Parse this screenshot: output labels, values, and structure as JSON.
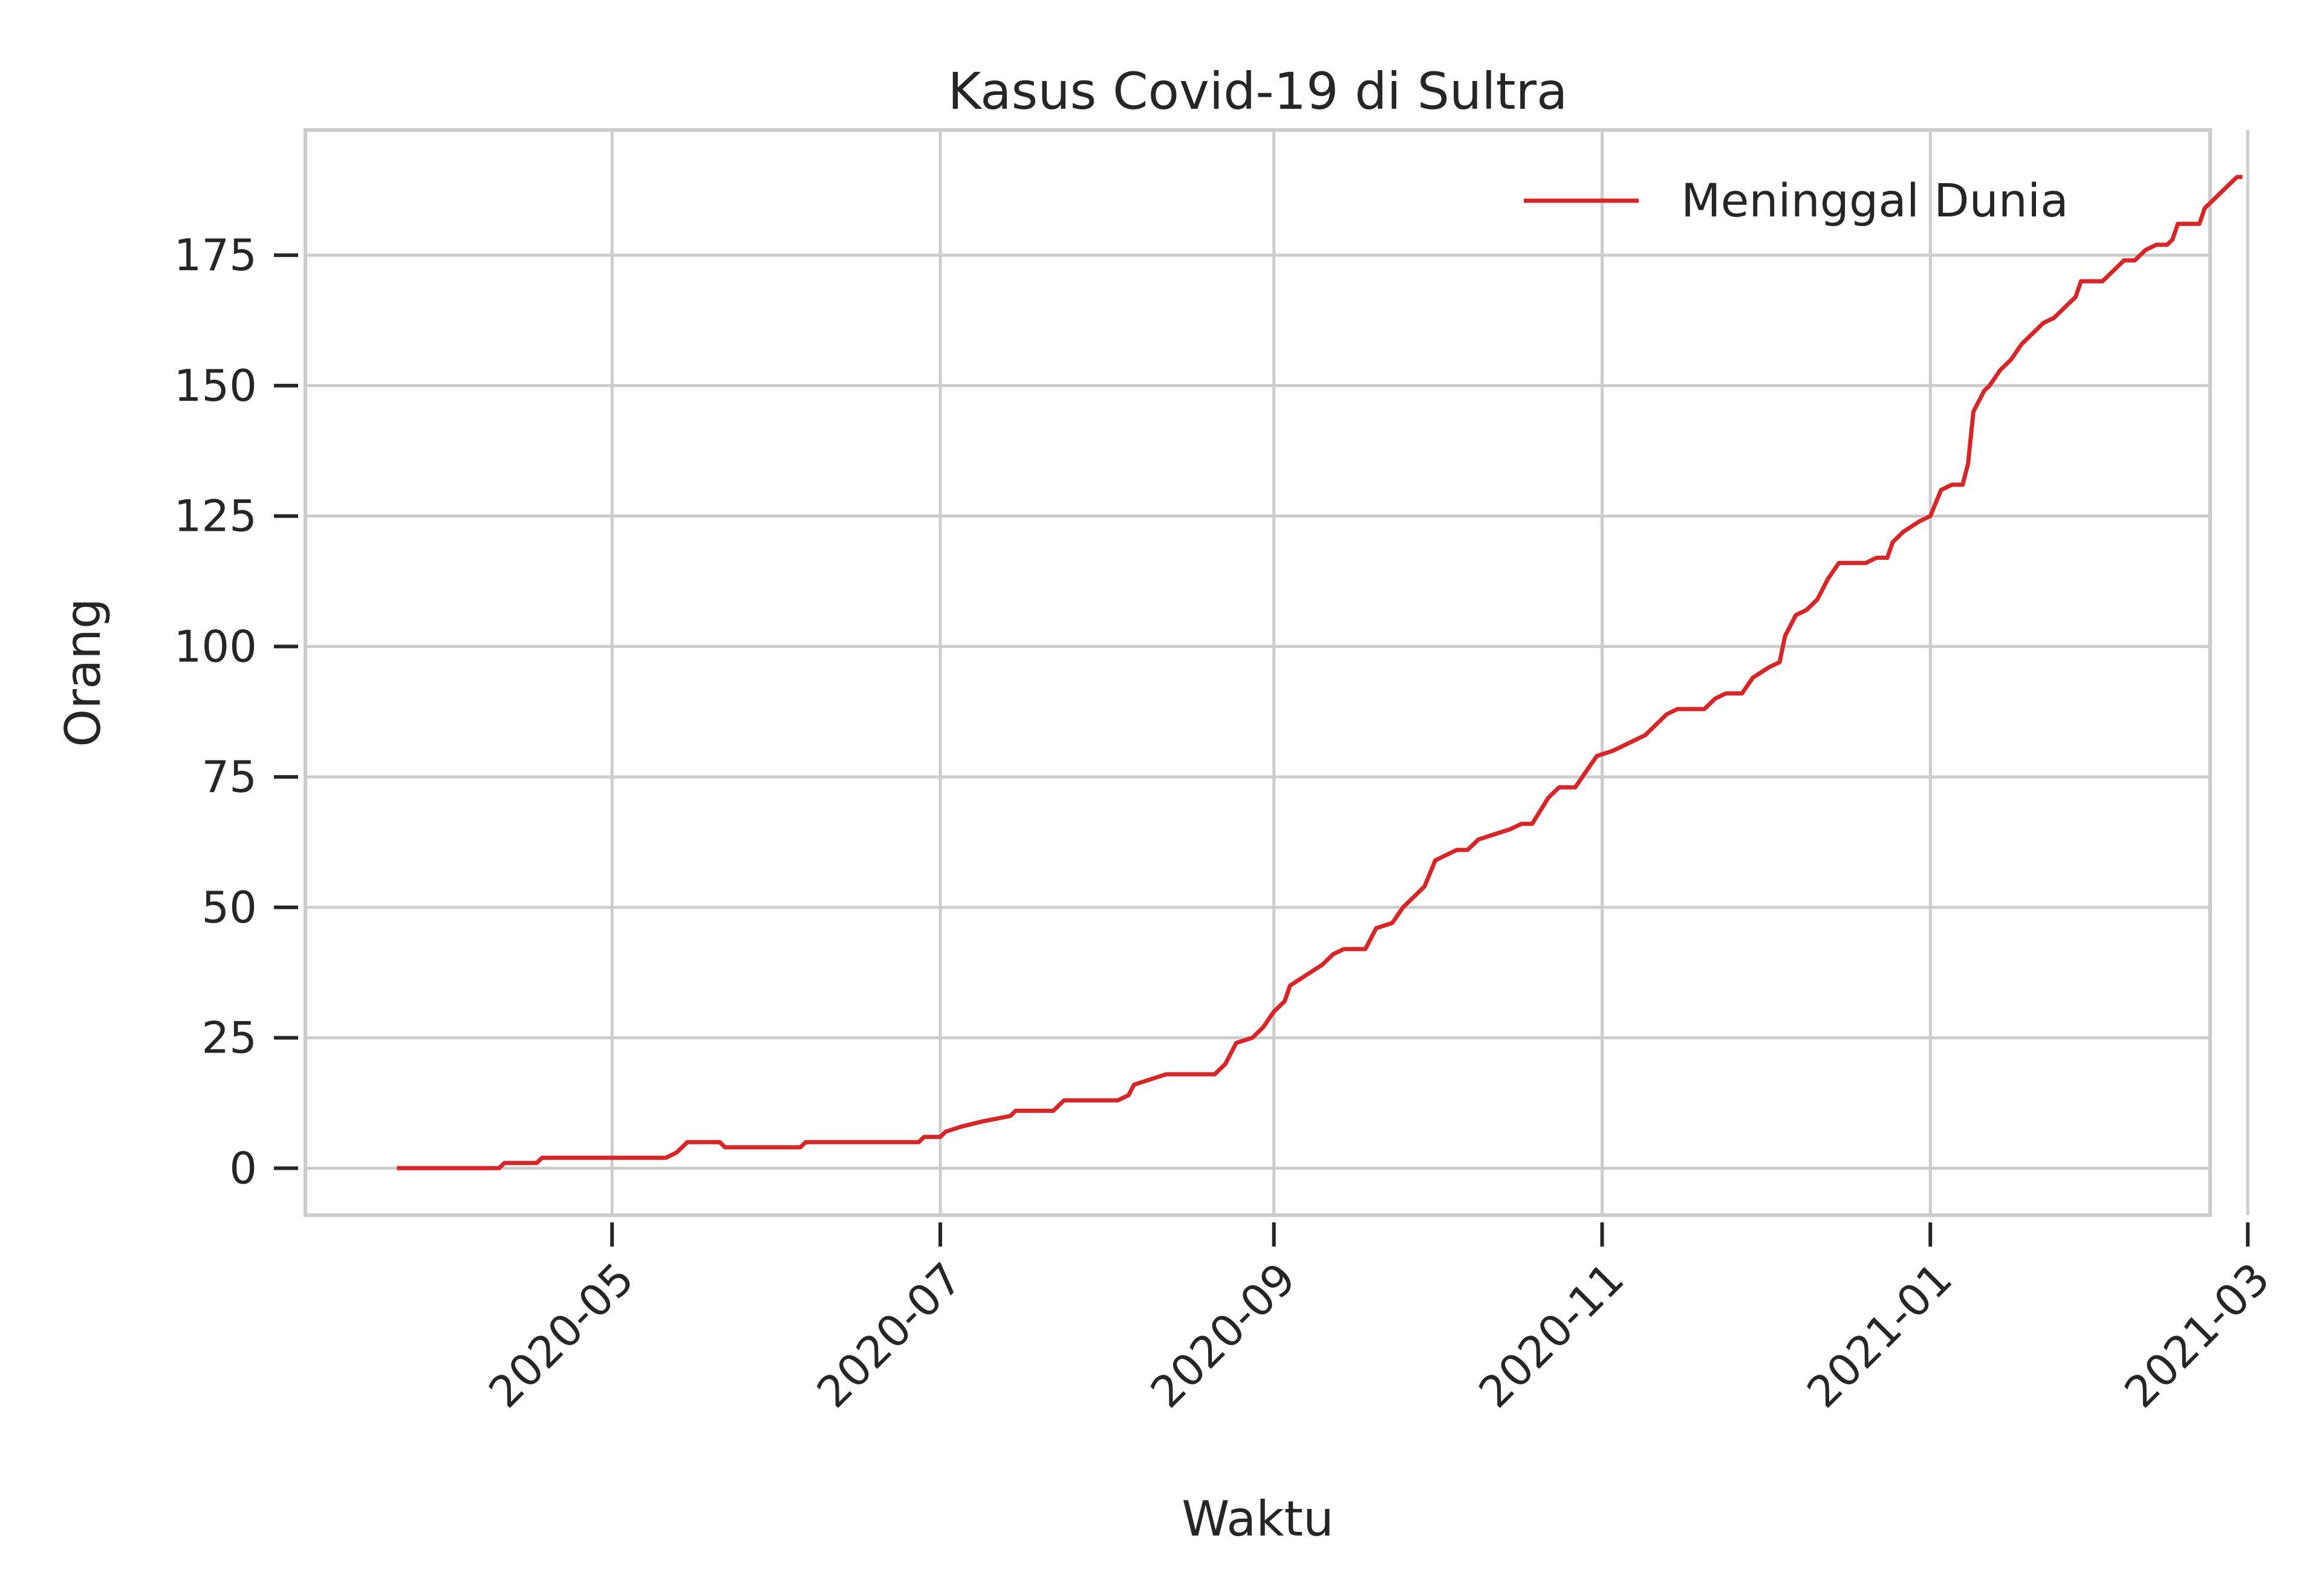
{
  "chart_data": {
    "type": "line",
    "title": "Kasus Covid-19 di Sultra",
    "xlabel": "Waktu",
    "ylabel": "Orang",
    "x_axis": "date",
    "xlim": [
      "2020-03-05",
      "2021-02-22"
    ],
    "ylim": [
      -9,
      199
    ],
    "x_ticks": [
      "2020-05",
      "2020-07",
      "2020-09",
      "2020-11",
      "2021-01",
      "2021-03"
    ],
    "y_ticks": [
      0,
      25,
      50,
      75,
      100,
      125,
      150,
      175
    ],
    "grid": true,
    "legend_position": "top-right",
    "series": [
      {
        "name": "Meninggal Dunia",
        "color": "#d62728",
        "points": [
          [
            "2020-03-22",
            0
          ],
          [
            "2020-04-10",
            0
          ],
          [
            "2020-04-11",
            1
          ],
          [
            "2020-04-17",
            1
          ],
          [
            "2020-04-18",
            2
          ],
          [
            "2020-05-11",
            2
          ],
          [
            "2020-05-13",
            3
          ],
          [
            "2020-05-15",
            5
          ],
          [
            "2020-05-21",
            5
          ],
          [
            "2020-05-22",
            4
          ],
          [
            "2020-06-05",
            4
          ],
          [
            "2020-06-06",
            5
          ],
          [
            "2020-06-27",
            5
          ],
          [
            "2020-06-28",
            6
          ],
          [
            "2020-07-01",
            6
          ],
          [
            "2020-07-02",
            7
          ],
          [
            "2020-07-05",
            8
          ],
          [
            "2020-07-09",
            9
          ],
          [
            "2020-07-14",
            10
          ],
          [
            "2020-07-15",
            11
          ],
          [
            "2020-07-22",
            11
          ],
          [
            "2020-07-24",
            13
          ],
          [
            "2020-08-03",
            13
          ],
          [
            "2020-08-05",
            14
          ],
          [
            "2020-08-06",
            16
          ],
          [
            "2020-08-09",
            17
          ],
          [
            "2020-08-12",
            18
          ],
          [
            "2020-08-21",
            18
          ],
          [
            "2020-08-23",
            20
          ],
          [
            "2020-08-25",
            24
          ],
          [
            "2020-08-28",
            25
          ],
          [
            "2020-08-30",
            27
          ],
          [
            "2020-09-01",
            30
          ],
          [
            "2020-09-03",
            32
          ],
          [
            "2020-09-04",
            35
          ],
          [
            "2020-09-07",
            37
          ],
          [
            "2020-09-10",
            39
          ],
          [
            "2020-09-12",
            41
          ],
          [
            "2020-09-14",
            42
          ],
          [
            "2020-09-18",
            42
          ],
          [
            "2020-09-20",
            46
          ],
          [
            "2020-09-23",
            47
          ],
          [
            "2020-09-25",
            50
          ],
          [
            "2020-09-27",
            52
          ],
          [
            "2020-09-29",
            54
          ],
          [
            "2020-10-01",
            59
          ],
          [
            "2020-10-03",
            60
          ],
          [
            "2020-10-05",
            61
          ],
          [
            "2020-10-07",
            61
          ],
          [
            "2020-10-09",
            63
          ],
          [
            "2020-10-12",
            64
          ],
          [
            "2020-10-15",
            65
          ],
          [
            "2020-10-17",
            66
          ],
          [
            "2020-10-19",
            66
          ],
          [
            "2020-10-22",
            71
          ],
          [
            "2020-10-24",
            73
          ],
          [
            "2020-10-27",
            73
          ],
          [
            "2020-10-29",
            76
          ],
          [
            "2020-10-31",
            79
          ],
          [
            "2020-11-03",
            80
          ],
          [
            "2020-11-05",
            81
          ],
          [
            "2020-11-07",
            82
          ],
          [
            "2020-11-09",
            83
          ],
          [
            "2020-11-11",
            85
          ],
          [
            "2020-11-13",
            87
          ],
          [
            "2020-11-15",
            88
          ],
          [
            "2020-11-20",
            88
          ],
          [
            "2020-11-22",
            90
          ],
          [
            "2020-11-24",
            91
          ],
          [
            "2020-11-27",
            91
          ],
          [
            "2020-11-29",
            94
          ],
          [
            "2020-12-02",
            96
          ],
          [
            "2020-12-04",
            97
          ],
          [
            "2020-12-05",
            102
          ],
          [
            "2020-12-07",
            106
          ],
          [
            "2020-12-09",
            107
          ],
          [
            "2020-12-11",
            109
          ],
          [
            "2020-12-13",
            113
          ],
          [
            "2020-12-15",
            116
          ],
          [
            "2020-12-20",
            116
          ],
          [
            "2020-12-22",
            117
          ],
          [
            "2020-12-24",
            117
          ],
          [
            "2020-12-25",
            120
          ],
          [
            "2020-12-27",
            122
          ],
          [
            "2020-12-30",
            124
          ],
          [
            "2021-01-01",
            125
          ],
          [
            "2021-01-03",
            130
          ],
          [
            "2021-01-05",
            131
          ],
          [
            "2021-01-07",
            131
          ],
          [
            "2021-01-08",
            135
          ],
          [
            "2021-01-09",
            145
          ],
          [
            "2021-01-11",
            149
          ],
          [
            "2021-01-12",
            150
          ],
          [
            "2021-01-14",
            153
          ],
          [
            "2021-01-16",
            155
          ],
          [
            "2021-01-18",
            158
          ],
          [
            "2021-01-20",
            160
          ],
          [
            "2021-01-22",
            162
          ],
          [
            "2021-01-24",
            163
          ],
          [
            "2021-01-26",
            165
          ],
          [
            "2021-01-28",
            167
          ],
          [
            "2021-01-29",
            170
          ],
          [
            "2021-02-02",
            170
          ],
          [
            "2021-02-04",
            172
          ],
          [
            "2021-02-06",
            174
          ],
          [
            "2021-02-08",
            174
          ],
          [
            "2021-02-10",
            176
          ],
          [
            "2021-02-12",
            177
          ],
          [
            "2021-02-14",
            177
          ],
          [
            "2021-02-15",
            178
          ],
          [
            "2021-02-16",
            181
          ],
          [
            "2021-02-18",
            181
          ],
          [
            "2021-02-20",
            181
          ],
          [
            "2021-02-21",
            184
          ],
          [
            "2021-02-23",
            186
          ],
          [
            "2021-02-25",
            188
          ],
          [
            "2021-02-27",
            190
          ],
          [
            "2021-02-28",
            190
          ]
        ]
      }
    ]
  }
}
